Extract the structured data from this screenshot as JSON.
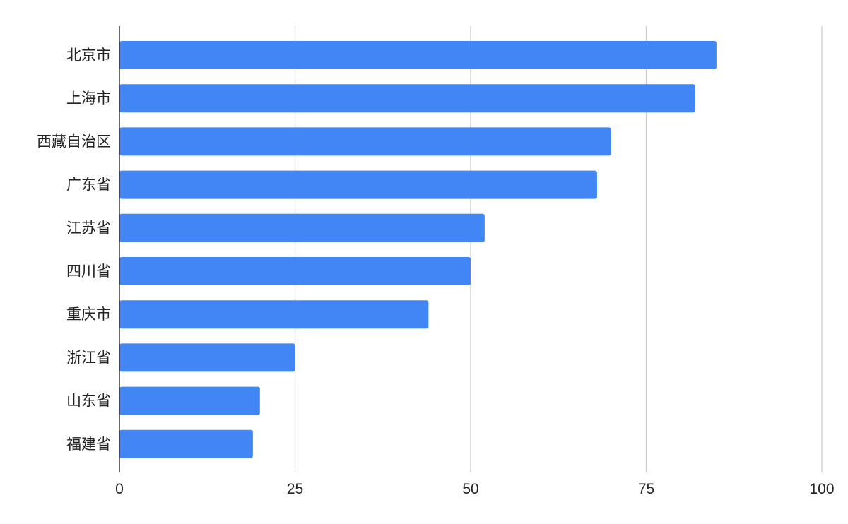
{
  "chart_data": {
    "type": "bar",
    "orientation": "horizontal",
    "categories": [
      "北京市",
      "上海市",
      "西藏自治区",
      "广东省",
      "江苏省",
      "四川省",
      "重庆市",
      "浙江省",
      "山东省",
      "福建省"
    ],
    "values": [
      85,
      82,
      70,
      68,
      52,
      50,
      44,
      25,
      20,
      19
    ],
    "xlim": [
      0,
      100
    ],
    "xticks": [
      0,
      25,
      50,
      75,
      100
    ],
    "title": "",
    "xlabel": "",
    "ylabel": "",
    "grid": "vertical",
    "legend": "none",
    "bar_color": "#4285f4",
    "grid_color": "#cccccc",
    "axis_color": "#333333"
  }
}
